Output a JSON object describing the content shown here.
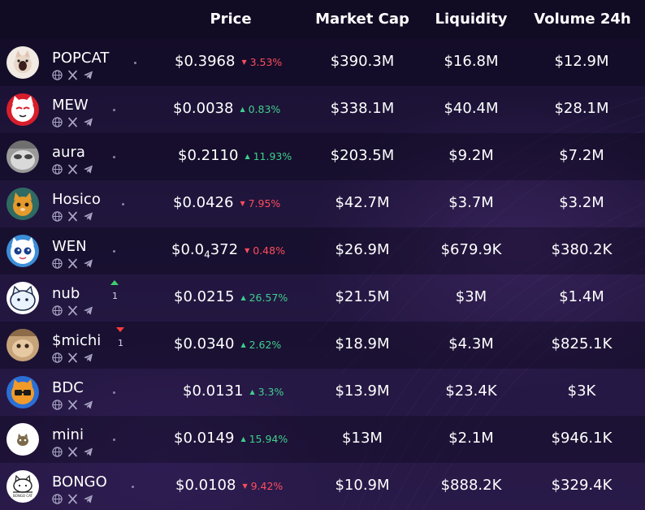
{
  "columns": {
    "price": "Price",
    "market_cap": "Market Cap",
    "liquidity": "Liquidity",
    "volume": "Volume 24h"
  },
  "icons": [
    "globe-icon",
    "x-logo-icon",
    "telegram-icon"
  ],
  "colors": {
    "up": "#3fcf8e",
    "down": "#ff4d5e",
    "header_bg": "#120b24"
  },
  "rows": [
    {
      "name": "POPCAT",
      "price": "$0.3968",
      "change": "3.53%",
      "direction": "down",
      "market_cap": "$390.3M",
      "liquidity": "$16.8M",
      "volume": "$12.9M",
      "avatar": "popcat"
    },
    {
      "name": "MEW",
      "price": "$0.0038",
      "change": "0.83%",
      "direction": "up",
      "market_cap": "$338.1M",
      "liquidity": "$40.4M",
      "volume": "$28.1M",
      "avatar": "mew"
    },
    {
      "name": "aura",
      "price": "$0.2110",
      "change": "11.93%",
      "direction": "up",
      "market_cap": "$203.5M",
      "liquidity": "$9.2M",
      "volume": "$7.2M",
      "avatar": "aura"
    },
    {
      "name": "Hosico",
      "price": "$0.0426",
      "change": "7.95%",
      "direction": "down",
      "market_cap": "$42.7M",
      "liquidity": "$3.7M",
      "volume": "$3.2M",
      "avatar": "hosico"
    },
    {
      "name": "WEN",
      "price_prefix": "$0.0",
      "price_sub": "4",
      "price_suffix": "372",
      "change": "0.48%",
      "direction": "down",
      "market_cap": "$26.9M",
      "liquidity": "$679.9K",
      "volume": "$380.2K",
      "avatar": "wen"
    },
    {
      "name": "nub",
      "price": "$0.0215",
      "change": "26.57%",
      "direction": "up",
      "market_cap": "$21.5M",
      "liquidity": "$3M",
      "volume": "$1.4M",
      "avatar": "nub",
      "trend": "up",
      "trend_count": "1"
    },
    {
      "name": "$michi",
      "price": "$0.0340",
      "change": "2.62%",
      "direction": "up",
      "market_cap": "$18.9M",
      "liquidity": "$4.3M",
      "volume": "$825.1K",
      "avatar": "michi",
      "trend": "down",
      "trend_count": "1"
    },
    {
      "name": "BDC",
      "price": "$0.0131",
      "change": "3.3%",
      "direction": "up",
      "market_cap": "$13.9M",
      "liquidity": "$23.4K",
      "volume": "$3K",
      "avatar": "bdc"
    },
    {
      "name": "mini",
      "price": "$0.0149",
      "change": "15.94%",
      "direction": "up",
      "market_cap": "$13M",
      "liquidity": "$2.1M",
      "volume": "$946.1K",
      "avatar": "mini"
    },
    {
      "name": "BONGO",
      "price": "$0.0108",
      "change": "9.42%",
      "direction": "down",
      "market_cap": "$10.9M",
      "liquidity": "$888.2K",
      "volume": "$329.4K",
      "avatar": "bongo",
      "avatar_text": "BONGO CAT"
    }
  ]
}
